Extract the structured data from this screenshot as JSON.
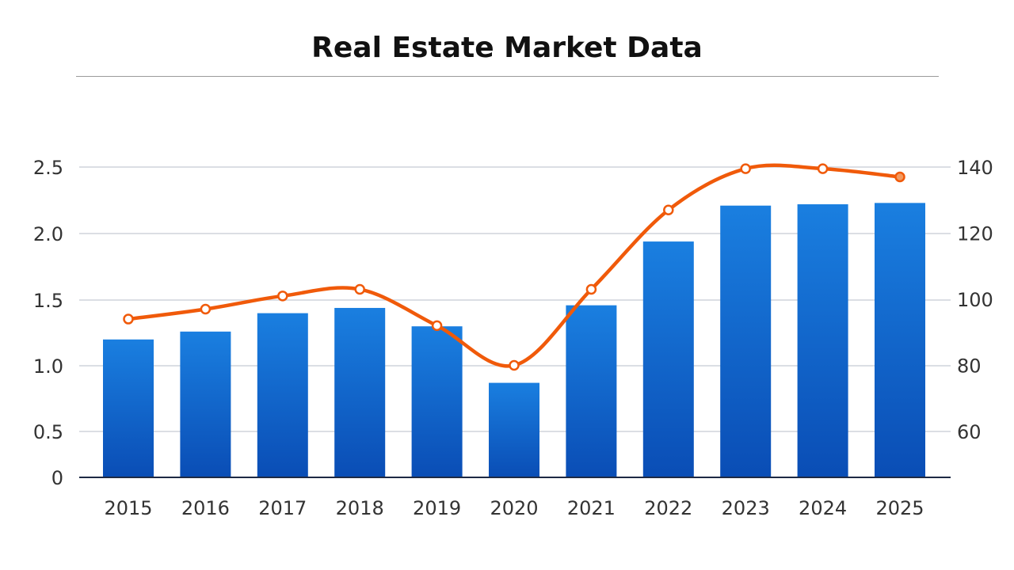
{
  "chart_data": {
    "type": "bar+line",
    "title": "Real Estate Market Data",
    "categories": [
      "2015",
      "2016",
      "2017",
      "2018",
      "2019",
      "2020",
      "2021",
      "2022",
      "2023",
      "2024",
      "2025"
    ],
    "series": [
      {
        "type": "bar",
        "axis": "left",
        "color": "#0b62d0",
        "values": [
          1.2,
          1.26,
          1.4,
          1.44,
          1.3,
          0.87,
          1.46,
          1.94,
          2.21,
          2.22,
          2.23
        ]
      },
      {
        "type": "line",
        "axis": "right",
        "color": "#f05a0a",
        "values": [
          94,
          97,
          101,
          103,
          92,
          80,
          103,
          127,
          139.5,
          139.5,
          137
        ]
      }
    ],
    "left_axis": {
      "ticks": [
        "0",
        "0.5",
        "1.0",
        "1.5",
        "2.0",
        "2.5"
      ]
    },
    "right_axis": {
      "ticks": [
        "60",
        "80",
        "100",
        "120",
        "140"
      ],
      "range": [
        46,
        140
      ]
    },
    "grid": true,
    "legend": "none"
  }
}
